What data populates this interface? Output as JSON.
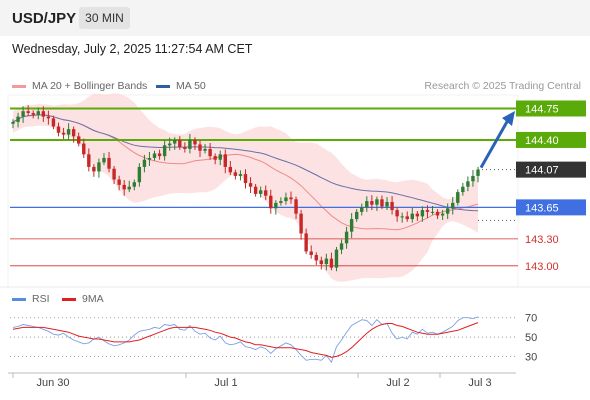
{
  "header": {
    "symbol": "USD/JPY",
    "timeframe": "30 MIN"
  },
  "timestamp": "Wednesday, July 2, 2025 11:27:54 AM CET",
  "legend": {
    "ma20_bb": "MA 20 + Bollinger Bands",
    "ma50": "MA 50",
    "rsi": "RSI",
    "rsi_ma": "9MA"
  },
  "credit": "Research © 2025 Trading Central",
  "colors": {
    "candle_up": "#2e7d32",
    "candle_down": "#c62828",
    "bands": "#fbd8d8",
    "ma20": "#f08a8a",
    "ma50": "#6a6fa8",
    "resistance": "#5aaa0a",
    "support": "#3f6fe0",
    "target_low": "#d32f2f",
    "arrow": "#2a62b8",
    "current": "#333333"
  },
  "chart_data": [
    {
      "type": "candlestick",
      "x_labels": [
        "Jun 30",
        "Jul 1",
        "Jul 2",
        "Jul 3"
      ],
      "ylim": [
        142.82,
        144.9
      ],
      "levels": [
        {
          "value": 144.75,
          "label": "144.75",
          "kind": "resistance"
        },
        {
          "value": 144.4,
          "label": "144.40",
          "kind": "resistance"
        },
        {
          "value": 144.07,
          "label": "144.07",
          "kind": "current"
        },
        {
          "value": 143.65,
          "label": "143.65",
          "kind": "support"
        },
        {
          "value": 143.3,
          "label": "143.30",
          "kind": "target"
        },
        {
          "value": 143.0,
          "label": "143.00",
          "kind": "target"
        }
      ],
      "close": [
        144.6,
        144.66,
        144.72,
        144.7,
        144.68,
        144.72,
        144.66,
        144.64,
        144.55,
        144.48,
        144.46,
        144.52,
        144.44,
        144.36,
        144.24,
        144.1,
        144.05,
        144.15,
        144.2,
        144.08,
        143.96,
        143.9,
        143.85,
        143.88,
        143.93,
        144.1,
        144.18,
        144.2,
        144.25,
        144.22,
        144.34,
        144.36,
        144.4,
        144.32,
        144.3,
        144.4,
        144.35,
        144.28,
        144.3,
        144.22,
        144.18,
        144.24,
        144.1,
        144.04,
        144.0,
        144.02,
        143.92,
        143.88,
        143.8,
        143.84,
        143.78,
        143.64,
        143.7,
        143.72,
        143.76,
        143.74,
        143.58,
        143.36,
        143.16,
        143.12,
        143.06,
        143.02,
        143.08,
        142.98,
        143.18,
        143.25,
        143.38,
        143.52,
        143.6,
        143.65,
        143.72,
        143.68,
        143.74,
        143.66,
        143.71,
        143.62,
        143.55,
        143.55,
        143.52,
        143.58,
        143.55,
        143.62,
        143.6,
        143.6,
        143.56,
        143.58,
        143.64,
        143.7,
        143.82,
        143.88,
        143.94,
        144.0,
        144.07
      ]
    },
    {
      "type": "line",
      "title": "RSI",
      "ylim": [
        18,
        78
      ],
      "y_ticks": [
        70,
        50,
        30
      ],
      "series": [
        {
          "name": "RSI",
          "values": [
            60,
            61,
            63,
            62,
            61,
            60,
            58,
            56,
            53,
            52,
            54,
            50,
            47,
            45,
            43,
            44,
            48,
            50,
            46,
            43,
            41,
            42,
            44,
            47,
            52,
            56,
            57,
            58,
            60,
            59,
            63,
            62,
            63,
            58,
            57,
            62,
            56,
            53,
            54,
            49,
            47,
            51,
            44,
            42,
            43,
            45,
            40,
            39,
            37,
            40,
            38,
            33,
            38,
            41,
            44,
            42,
            37,
            31,
            26,
            27,
            27,
            26,
            31,
            24,
            40,
            47,
            55,
            62,
            65,
            68,
            67,
            62,
            68,
            63,
            64,
            54,
            48,
            50,
            48,
            55,
            53,
            58,
            54,
            55,
            53,
            55,
            58,
            61,
            67,
            70,
            70,
            69,
            71
          ]
        },
        {
          "name": "9MA",
          "values": [
            58,
            59,
            60,
            60,
            60,
            60,
            60,
            59,
            58,
            57,
            56,
            55,
            53,
            51,
            50,
            49,
            48,
            48,
            47,
            46,
            45,
            45,
            45,
            45,
            46,
            47,
            49,
            51,
            53,
            55,
            57,
            59,
            60,
            60,
            60,
            60,
            60,
            59,
            58,
            57,
            55,
            54,
            52,
            50,
            49,
            47,
            45,
            44,
            42,
            42,
            41,
            40,
            39,
            39,
            39,
            39,
            38,
            37,
            36,
            34,
            33,
            32,
            31,
            29,
            30,
            32,
            35,
            39,
            44,
            49,
            54,
            58,
            61,
            63,
            64,
            64,
            62,
            61,
            59,
            57,
            55,
            54,
            53,
            53,
            53,
            54,
            55,
            56,
            57,
            59,
            61,
            63,
            65
          ]
        }
      ]
    }
  ]
}
